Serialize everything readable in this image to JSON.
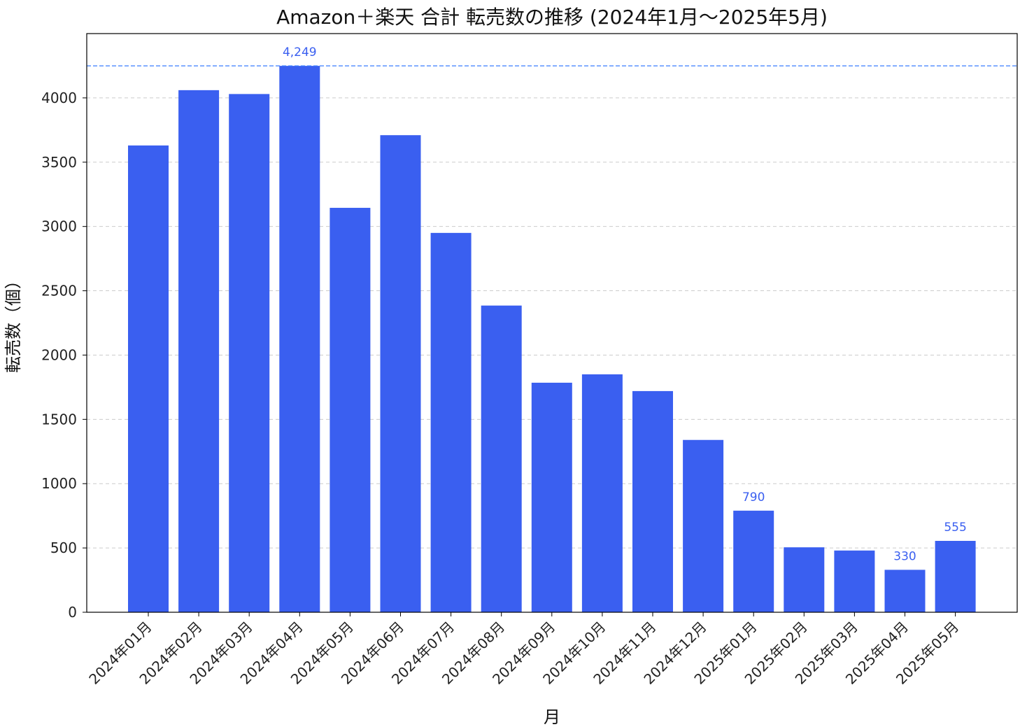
{
  "chart_data": {
    "type": "bar",
    "title": "Amazon＋楽天 合計 転売数の推移 (2024年1月〜2025年5月)",
    "xlabel": "月",
    "ylabel": "転売数（個）",
    "categories": [
      "2024年01月",
      "2024年02月",
      "2024年03月",
      "2024年04月",
      "2024年05月",
      "2024年06月",
      "2024年07月",
      "2024年08月",
      "2024年09月",
      "2024年10月",
      "2024年11月",
      "2024年12月",
      "2025年01月",
      "2025年02月",
      "2025年03月",
      "2025年04月",
      "2025年05月"
    ],
    "values": [
      3630,
      4060,
      4030,
      4249,
      3145,
      3710,
      2950,
      2385,
      1785,
      1850,
      1720,
      1340,
      790,
      505,
      480,
      330,
      555
    ],
    "value_labels": [
      {
        "index": 3,
        "text": "4,249"
      },
      {
        "index": 12,
        "text": "790"
      },
      {
        "index": 15,
        "text": "330"
      },
      {
        "index": 16,
        "text": "555"
      }
    ],
    "reference_line": 4249,
    "yticks": [
      0,
      500,
      1000,
      1500,
      2000,
      2500,
      3000,
      3500,
      4000
    ],
    "ylim": [
      0,
      4500
    ],
    "grid": "y-dashed",
    "bar_color": "#3a5ff0",
    "reference_line_color": "#3a7dff",
    "grid_color": "#cccccc"
  }
}
